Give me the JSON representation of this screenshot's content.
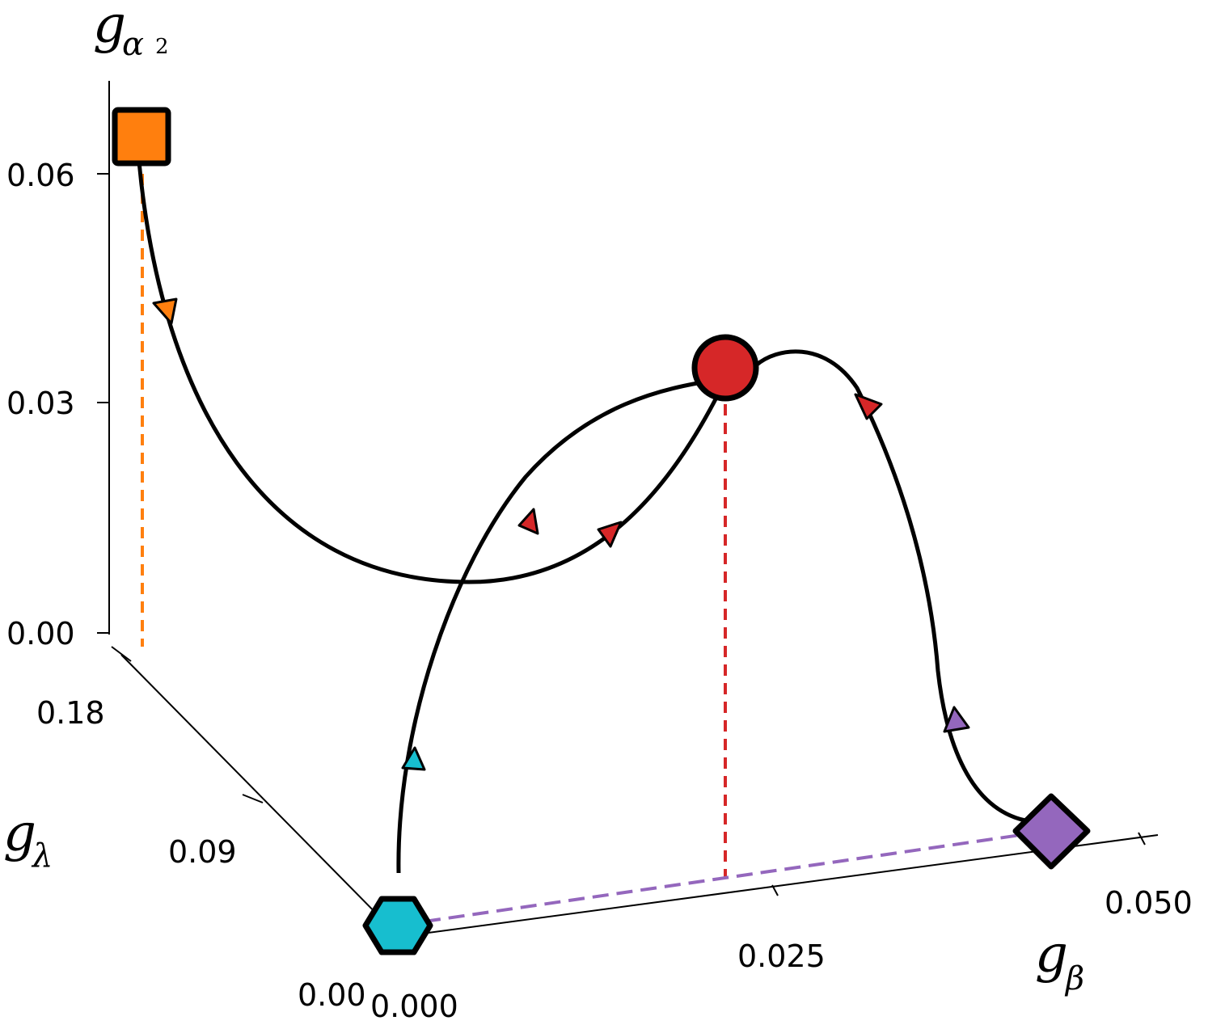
{
  "chart_data": {
    "type": "line",
    "projection": "3d",
    "axes": {
      "z": {
        "label": "g",
        "label_sub": "α",
        "label_subsub": "2",
        "ticks": [
          "0.00",
          "0.03",
          "0.06"
        ],
        "range": [
          0.0,
          0.066
        ]
      },
      "y": {
        "label": "g",
        "label_sub": "λ",
        "ticks": [
          "0.00",
          "0.09",
          "0.18"
        ],
        "range": [
          0.0,
          0.18
        ]
      },
      "x": {
        "label": "g",
        "label_sub": "β",
        "ticks": [
          "0.000",
          "0.025",
          "0.050"
        ],
        "range": [
          0.0,
          0.05
        ]
      }
    },
    "fixed_points": [
      {
        "marker": "hexagon",
        "color": "#17becf",
        "beta": 0.0,
        "lambda": 0.0,
        "alpha2": 0.0
      },
      {
        "marker": "square",
        "color": "#ff7f0e",
        "beta": 0.0,
        "lambda": 0.18,
        "alpha2": 0.066
      },
      {
        "marker": "diamond",
        "color": "#9467bd",
        "beta": 0.047,
        "lambda": 0.0,
        "alpha2": 0.0
      },
      {
        "marker": "circle",
        "color": "#d62728",
        "beta": 0.023,
        "lambda": 0.0,
        "alpha2": 0.036
      }
    ],
    "flows": [
      {
        "from": "hexagon",
        "to": "circle",
        "arrow_colors": [
          "#17becf",
          "#d62728"
        ]
      },
      {
        "from": "square",
        "to": "circle",
        "arrow_colors": [
          "#ff7f0e",
          "#d62728"
        ]
      },
      {
        "from": "diamond",
        "to": "circle",
        "arrow_colors": [
          "#9467bd",
          "#d62728"
        ]
      }
    ],
    "grid": false,
    "legend": "none"
  }
}
